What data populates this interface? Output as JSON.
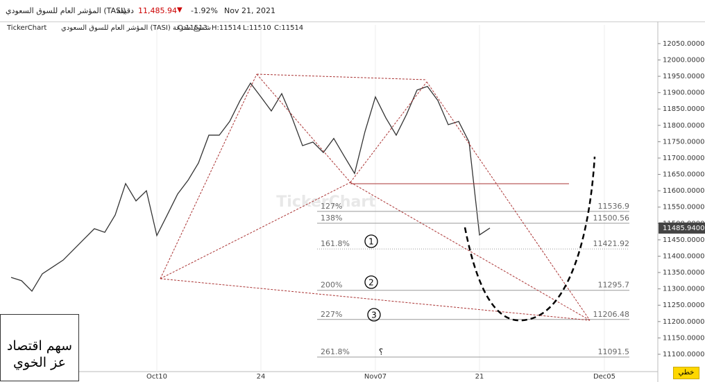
{
  "header": {
    "symbol": "المؤشر العام للسوق السعودي (TASI)",
    "interval": "دقيقة",
    "price": "11,485.94",
    "change": "-1.92%",
    "date": "Nov 21, 2021"
  },
  "info": {
    "brand": "TickerChart",
    "description": "المؤشر العام للسوق السعودي (TASI) شموع مفرغة",
    "open": "O:11513",
    "high": "H:11514",
    "low": "L:11510",
    "close": "C:11514"
  },
  "watermark": "TickerChart",
  "note": {
    "line1": "سهم اقتصاد",
    "line2": "عز الخوي"
  },
  "button": "خطي",
  "chart_data": {
    "type": "line",
    "color": "#333333",
    "categories": [
      null,
      null,
      null,
      null,
      null,
      null,
      null,
      null,
      null,
      null,
      null,
      null,
      null,
      null,
      "Oct10",
      null,
      null,
      null,
      null,
      null,
      null,
      null,
      null,
      null,
      "24",
      null,
      null,
      null,
      null,
      null,
      null,
      null,
      null,
      null,
      null,
      "Nov07",
      null,
      null,
      null,
      null,
      null,
      null,
      null,
      null,
      null,
      "21",
      null,
      null,
      null,
      null,
      null,
      null,
      null,
      null,
      null,
      null,
      null,
      "Dec05",
      null,
      null,
      null,
      null,
      null
    ],
    "values": [
      11335,
      11325,
      11293,
      11346,
      11367,
      11388,
      11420,
      11452,
      11484,
      11473,
      11526,
      11622,
      11569,
      11600,
      11463,
      11526,
      11590,
      11632,
      11685,
      11770,
      11770,
      11812,
      11876,
      11929,
      11887,
      11844,
      11897,
      11823,
      11738,
      11749,
      11717,
      11760,
      11706,
      11653,
      11781,
      11887,
      11823,
      11770,
      11834,
      11908,
      11919,
      11876,
      11802,
      11812,
      11749,
      11465,
      11486,
      null,
      null,
      null,
      null,
      null,
      null,
      null,
      null,
      null,
      null,
      null,
      null,
      null,
      null,
      null,
      null
    ],
    "ylim": [
      11047,
      12107
    ],
    "yticks": [
      {
        "value": 11100,
        "label": "11100.0000"
      },
      {
        "value": 11150,
        "label": "11150.0000"
      },
      {
        "value": 11200,
        "label": "11200.0000"
      },
      {
        "value": 11250,
        "label": "11250.0000"
      },
      {
        "value": 11300,
        "label": "11300.0000"
      },
      {
        "value": 11350,
        "label": "11350.0000"
      },
      {
        "value": 11400,
        "label": "11400.0000"
      },
      {
        "value": 11450,
        "label": "11450.0000"
      },
      {
        "value": 11500,
        "label": "11500.0000"
      },
      {
        "value": 11550,
        "label": "11550.0000"
      },
      {
        "value": 11600,
        "label": "11600.0000"
      },
      {
        "value": 11650,
        "label": "11650.0000"
      },
      {
        "value": 11700,
        "label": "11700.0000"
      },
      {
        "value": 11750,
        "label": "11750.0000"
      },
      {
        "value": 11800,
        "label": "11800.0000"
      },
      {
        "value": 11850,
        "label": "11850.0000"
      },
      {
        "value": 11900,
        "label": "11900.0000"
      },
      {
        "value": 11950,
        "label": "11950.0000"
      },
      {
        "value": 12000,
        "label": "12000.0000"
      },
      {
        "value": 12050,
        "label": "12050.0000"
      }
    ],
    "last_price": {
      "value": 11485.94,
      "label": "11485.9400"
    },
    "fib_levels": [
      {
        "label": "127%",
        "value": 11536.9
      },
      {
        "label": "138%",
        "value": 11500.56
      },
      {
        "label": "161.8%",
        "value": 11421.92
      },
      {
        "label": "200%",
        "value": 11295.7
      },
      {
        "label": "227%",
        "value": 11206.48
      },
      {
        "label": "261.8%",
        "value": 11091.5
      }
    ],
    "annotations": [
      "1",
      "2",
      "3",
      "؟"
    ]
  }
}
